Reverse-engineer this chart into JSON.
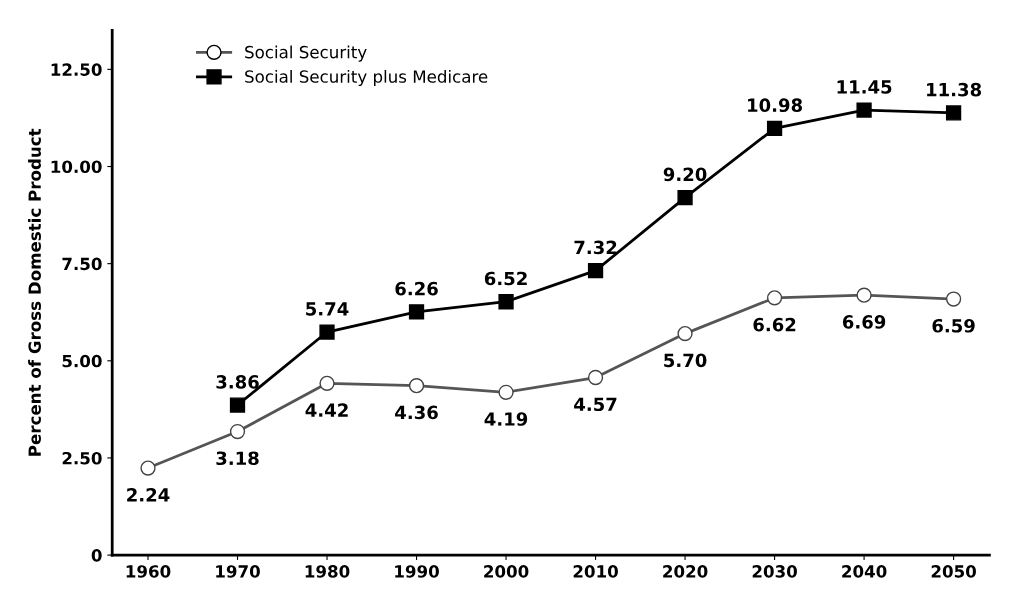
{
  "chart_data": {
    "type": "line",
    "ylabel": "Percent of Gross Domestic Product",
    "categories": [
      "1960",
      "1970",
      "1980",
      "1990",
      "2000",
      "2010",
      "2020",
      "2030",
      "2040",
      "2050"
    ],
    "series": [
      {
        "name": "Social Security",
        "color": "#555555",
        "marker": "circle",
        "values": [
          2.24,
          3.18,
          4.42,
          4.36,
          4.19,
          4.57,
          5.7,
          6.62,
          6.69,
          6.59
        ],
        "value_labels": [
          "2.24",
          "3.18",
          "4.42",
          "4.36",
          "4.19",
          "4.57",
          "5.70",
          "6.62",
          "6.69",
          "6.59"
        ]
      },
      {
        "name": "Social Security plus Medicare",
        "color": "#000000",
        "marker": "square",
        "values": [
          null,
          3.86,
          5.74,
          6.26,
          6.52,
          7.32,
          9.2,
          10.98,
          11.45,
          11.38
        ],
        "value_labels": [
          null,
          "3.86",
          "5.74",
          "6.26",
          "6.52",
          "7.32",
          "9.20",
          "10.98",
          "11.45",
          "11.38"
        ]
      }
    ],
    "ylim": [
      0,
      13.5
    ],
    "yticks": [
      {
        "value": 0,
        "label": "0"
      },
      {
        "value": 2.5,
        "label": "2.50"
      },
      {
        "value": 5,
        "label": "5.00"
      },
      {
        "value": 7.5,
        "label": "7.50"
      },
      {
        "value": 10,
        "label": "10.00"
      },
      {
        "value": 12.5,
        "label": "12.50"
      }
    ],
    "legend": "top left",
    "grid": false,
    "line_style": "solid"
  }
}
